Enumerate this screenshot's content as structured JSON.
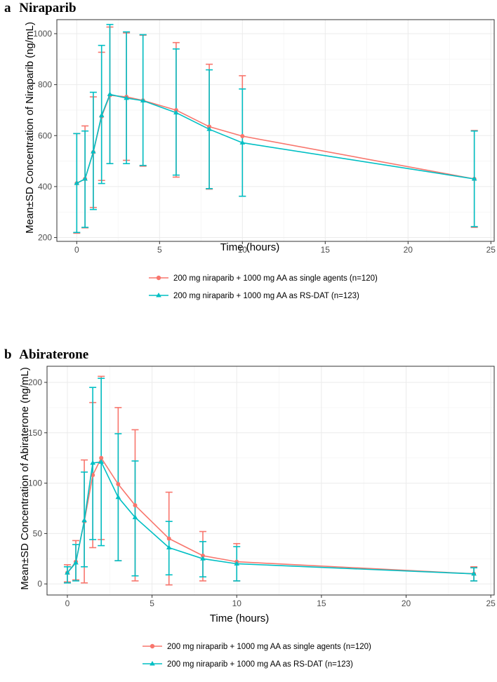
{
  "colors": {
    "single": "#F8766D",
    "rsdat": "#00BFC4",
    "grid_major": "#EBEBEB",
    "grid_minor": "#F5F5F5",
    "border": "#333333"
  },
  "chart_data": [
    {
      "type": "line",
      "panel_letter": "a",
      "title": "Niraparib",
      "xlabel": "Time (hours)",
      "ylabel": "Mean±SD Concentration of Niraparib (ng/mL)",
      "xlim": [
        -1.2,
        25.2
      ],
      "ylim": [
        185,
        1055
      ],
      "xticks": [
        0,
        5,
        10,
        15,
        20,
        25
      ],
      "yticks": [
        200,
        400,
        600,
        800,
        1000
      ],
      "x": [
        0,
        0.5,
        1,
        1.5,
        2,
        3,
        4,
        6,
        8,
        10,
        24
      ],
      "series": [
        {
          "name": "200 mg niraparib + 1000 mg AA as single agents (n=120)",
          "marker": "circle",
          "mean": [
            413,
            430,
            535,
            675,
            758,
            752,
            738,
            700,
            635,
            598,
            430
          ],
          "lower": [
            217,
            238,
            318,
            424,
            490,
            503,
            480,
            437,
            390,
            362,
            240
          ],
          "upper": [
            608,
            638,
            752,
            927,
            1026,
            1003,
            994,
            965,
            880,
            835,
            620
          ]
        },
        {
          "name": "200 mg niraparib + 1000 mg AA as RS-DAT (n=123)",
          "marker": "triangle",
          "mean": [
            413,
            430,
            537,
            679,
            762,
            747,
            737,
            690,
            625,
            572,
            430
          ],
          "lower": [
            220,
            240,
            310,
            412,
            490,
            490,
            483,
            445,
            392,
            362,
            243
          ],
          "upper": [
            608,
            618,
            770,
            954,
            1036,
            1007,
            996,
            940,
            858,
            783,
            618
          ]
        }
      ]
    },
    {
      "type": "line",
      "panel_letter": "b",
      "title": "Abiraterone",
      "xlabel": "Time (hours)",
      "ylabel": "Mean±SD Concentration of Abiraterone (ng/mL)",
      "xlim": [
        -1.2,
        25.2
      ],
      "ylim": [
        -11,
        216
      ],
      "xticks": [
        0,
        5,
        10,
        15,
        20,
        25
      ],
      "yticks": [
        0,
        50,
        100,
        150,
        200
      ],
      "x": [
        0,
        0.5,
        1,
        1.5,
        2,
        3,
        4,
        6,
        8,
        10,
        24
      ],
      "series": [
        {
          "name": "200 mg niraparib + 1000 mg AA as single agents (n=120)",
          "marker": "circle",
          "mean": [
            11,
            22,
            62,
            108,
            125,
            99,
            78,
            45,
            28,
            22,
            10
          ],
          "lower": [
            2,
            4,
            1,
            36,
            44,
            23,
            3,
            -1,
            3,
            3,
            3
          ],
          "upper": [
            19,
            43,
            123,
            180,
            206,
            175,
            153,
            91,
            52,
            40,
            17
          ]
        },
        {
          "name": "200 mg niraparib + 1000 mg AA as RS-DAT (n=123)",
          "marker": "triangle",
          "mean": [
            11,
            21,
            63,
            120,
            121,
            86,
            66,
            36,
            25,
            20,
            10
          ],
          "lower": [
            1,
            3,
            17,
            44,
            38,
            23,
            8,
            9,
            7,
            3,
            3
          ],
          "upper": [
            17,
            39,
            111,
            195,
            204,
            149,
            122,
            62,
            42,
            37,
            16
          ]
        }
      ]
    }
  ]
}
